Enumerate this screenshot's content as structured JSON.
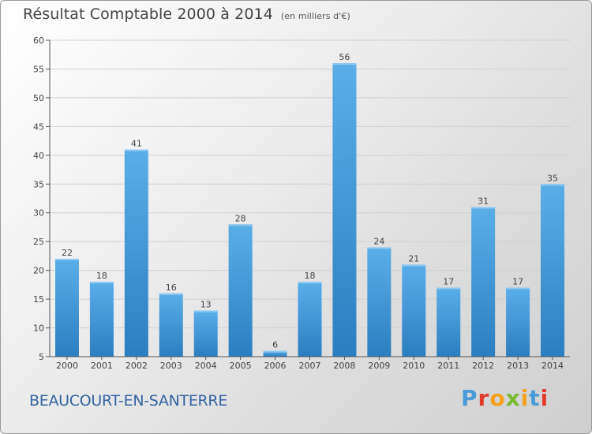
{
  "title": "Résultat Comptable 2000 à 2014",
  "subtitle": "(en milliers d'€)",
  "location": "BEAUCOURT-EN-SANTERRE",
  "logo": {
    "text": "Proxiti",
    "letter_colors": [
      "#4a9bd8",
      "#e23b2c",
      "#f4a11a",
      "#7ab82e",
      "#f4a11a",
      "#4a9bd8",
      "#e23b2c"
    ]
  },
  "colors": {
    "bar_top": "#5aaee8",
    "bar_bottom": "#2b7fc1",
    "grid": "#d0d0d0",
    "label": "#444444"
  },
  "chart_data": {
    "type": "bar",
    "title": "Résultat Comptable 2000 à 2014",
    "subtitle": "(en milliers d'€)",
    "categories": [
      "2000",
      "2001",
      "2002",
      "2003",
      "2004",
      "2005",
      "2006",
      "2007",
      "2008",
      "2009",
      "2010",
      "2011",
      "2012",
      "2013",
      "2014"
    ],
    "values": [
      22,
      18,
      41,
      16,
      13,
      28,
      6,
      18,
      56,
      24,
      21,
      17,
      31,
      17,
      35
    ],
    "ylim": [
      5,
      60
    ],
    "yticks": [
      5,
      10,
      15,
      20,
      25,
      30,
      35,
      40,
      45,
      50,
      55,
      60
    ],
    "grid": true,
    "data_labels": true
  }
}
